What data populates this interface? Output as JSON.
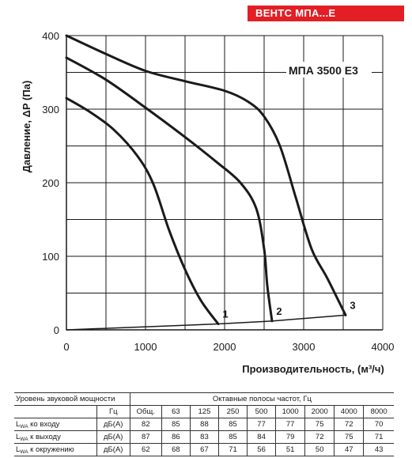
{
  "header": {
    "badge": "ВЕНТС МПА...Е"
  },
  "chart_data": {
    "type": "line",
    "title": "МПА 3500 Е3",
    "xlabel": "Производительность, (м³/ч)",
    "ylabel": "Давление, ΔP (Па)",
    "xlim": [
      0,
      4000
    ],
    "ylim": [
      0,
      400
    ],
    "xticks": [
      0,
      1000,
      2000,
      3000,
      4000
    ],
    "yticks": [
      0,
      100,
      200,
      300,
      400
    ],
    "grid": true,
    "series": [
      {
        "name": "1",
        "x": [
          0,
          300,
          600,
          900,
          1100,
          1300,
          1500,
          1700,
          1920
        ],
        "y": [
          315,
          296,
          272,
          236,
          198,
          135,
          82,
          40,
          8
        ]
      },
      {
        "name": "2",
        "x": [
          0,
          500,
          1000,
          1500,
          1900,
          2200,
          2400,
          2500,
          2540,
          2600
        ],
        "y": [
          370,
          340,
          302,
          262,
          228,
          200,
          165,
          110,
          60,
          12
        ]
      },
      {
        "name": "3",
        "x": [
          0,
          500,
          1000,
          1500,
          2000,
          2300,
          2500,
          2700,
          2900,
          3100,
          3300,
          3530
        ],
        "y": [
          400,
          375,
          352,
          338,
          325,
          310,
          290,
          250,
          180,
          110,
          70,
          20
        ]
      },
      {
        "name": "system",
        "x": [
          0,
          1920,
          2600,
          3530
        ],
        "y": [
          0,
          8,
          12,
          20
        ]
      }
    ],
    "curve_labels": [
      "1",
      "2",
      "3"
    ]
  },
  "sound_table": {
    "title": "Уровень звуковой мощности",
    "octave_header": "Октавные полосы частот, Гц",
    "unit_header": "Гц",
    "columns": [
      "Общ.",
      "63",
      "125",
      "250",
      "500",
      "1000",
      "2000",
      "4000",
      "8000"
    ],
    "rows": [
      {
        "main": "L",
        "sub": "WA",
        "rest": " ко входу",
        "unit": "дБ(А)",
        "values": [
          "82",
          "85",
          "88",
          "85",
          "77",
          "77",
          "75",
          "72",
          "70"
        ]
      },
      {
        "main": "L",
        "sub": "WA",
        "rest": " к выходу",
        "unit": "дБ(А)",
        "values": [
          "87",
          "86",
          "83",
          "85",
          "84",
          "79",
          "72",
          "75",
          "71"
        ]
      },
      {
        "main": "L",
        "sub": "WA",
        "rest": " к окружению",
        "unit": "дБ(А)",
        "values": [
          "62",
          "68",
          "67",
          "71",
          "56",
          "51",
          "50",
          "47",
          "43"
        ]
      }
    ]
  }
}
